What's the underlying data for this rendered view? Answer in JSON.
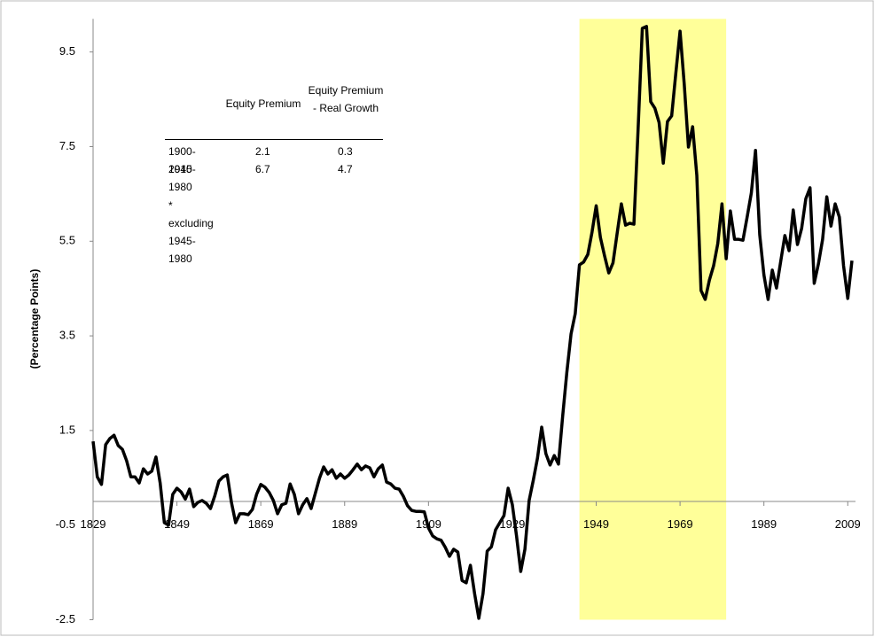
{
  "chart_data": {
    "type": "line",
    "ylabel": "(Percentage Points)",
    "x": [
      1829,
      1830,
      1831,
      1832,
      1833,
      1834,
      1835,
      1836,
      1837,
      1838,
      1839,
      1840,
      1841,
      1842,
      1843,
      1844,
      1845,
      1846,
      1847,
      1848,
      1849,
      1850,
      1851,
      1852,
      1853,
      1854,
      1855,
      1856,
      1857,
      1858,
      1859,
      1860,
      1861,
      1862,
      1863,
      1864,
      1865,
      1866,
      1867,
      1868,
      1869,
      1870,
      1871,
      1872,
      1873,
      1874,
      1875,
      1876,
      1877,
      1878,
      1879,
      1880,
      1881,
      1882,
      1883,
      1884,
      1885,
      1886,
      1887,
      1888,
      1889,
      1890,
      1891,
      1892,
      1893,
      1894,
      1895,
      1896,
      1897,
      1898,
      1899,
      1900,
      1901,
      1902,
      1903,
      1904,
      1905,
      1906,
      1907,
      1908,
      1909,
      1910,
      1911,
      1912,
      1913,
      1914,
      1915,
      1916,
      1917,
      1918,
      1919,
      1920,
      1921,
      1922,
      1923,
      1924,
      1925,
      1926,
      1927,
      1928,
      1929,
      1930,
      1931,
      1932,
      1933,
      1934,
      1935,
      1936,
      1937,
      1938,
      1939,
      1940,
      1941,
      1942,
      1943,
      1944,
      1945,
      1946,
      1947,
      1948,
      1949,
      1950,
      1951,
      1952,
      1953,
      1954,
      1955,
      1956,
      1957,
      1958,
      1959,
      1960,
      1961,
      1962,
      1963,
      1964,
      1965,
      1966,
      1967,
      1968,
      1969,
      1970,
      1971,
      1972,
      1973,
      1974,
      1975,
      1976,
      1977,
      1978,
      1979,
      1980,
      1981,
      1982,
      1983,
      1984,
      1985,
      1986,
      1987,
      1988,
      1989,
      1990,
      1991,
      1992,
      1993,
      1994,
      1995,
      1996,
      1997,
      1998,
      1999,
      2000,
      2001,
      2002,
      2003,
      2004,
      2005,
      2006,
      2007,
      2008,
      2009,
      2010
    ],
    "series": [
      {
        "color": "#000000",
        "values": [
          1.27,
          0.52,
          0.36,
          1.2,
          1.33,
          1.4,
          1.18,
          1.1,
          0.86,
          0.52,
          0.52,
          0.39,
          0.69,
          0.58,
          0.64,
          0.94,
          0.39,
          -0.45,
          -0.5,
          0.15,
          0.28,
          0.2,
          0.05,
          0.26,
          -0.11,
          -0.02,
          0.02,
          -0.04,
          -0.15,
          0.11,
          0.43,
          0.52,
          0.56,
          -0.02,
          -0.45,
          -0.26,
          -0.26,
          -0.28,
          -0.17,
          0.15,
          0.36,
          0.3,
          0.19,
          0.02,
          -0.26,
          -0.07,
          -0.04,
          0.37,
          0.15,
          -0.26,
          -0.07,
          0.06,
          -0.15,
          0.17,
          0.49,
          0.73,
          0.58,
          0.67,
          0.49,
          0.58,
          0.49,
          0.56,
          0.67,
          0.79,
          0.67,
          0.75,
          0.71,
          0.52,
          0.69,
          0.77,
          0.41,
          0.37,
          0.28,
          0.26,
          0.11,
          -0.09,
          -0.19,
          -0.21,
          -0.21,
          -0.22,
          -0.56,
          -0.73,
          -0.79,
          -0.82,
          -0.97,
          -1.16,
          -1.01,
          -1.07,
          -1.67,
          -1.72,
          -1.35,
          -1.95,
          -2.47,
          -1.95,
          -1.05,
          -0.96,
          -0.6,
          -0.45,
          -0.3,
          0.28,
          -0.07,
          -0.73,
          -1.48,
          -1.01,
          0.02,
          0.45,
          0.92,
          1.57,
          1.01,
          0.77,
          0.97,
          0.79,
          1.8,
          2.73,
          3.54,
          3.97,
          5.0,
          5.06,
          5.22,
          5.69,
          6.25,
          5.58,
          5.19,
          4.83,
          5.04,
          5.67,
          6.29,
          5.84,
          5.88,
          5.86,
          7.88,
          10.0,
          10.04,
          8.45,
          8.31,
          8.01,
          7.15,
          8.03,
          8.15,
          9.06,
          9.94,
          8.82,
          7.49,
          7.92,
          6.89,
          4.46,
          4.27,
          4.68,
          4.98,
          5.45,
          6.29,
          5.13,
          6.14,
          5.54,
          5.54,
          5.52,
          6.01,
          6.52,
          7.42,
          5.64,
          4.79,
          4.27,
          4.89,
          4.51,
          5.07,
          5.62,
          5.3,
          6.16,
          5.43,
          5.77,
          6.4,
          6.63,
          4.61,
          5.02,
          5.54,
          6.44,
          5.82,
          6.29,
          6.01,
          4.98,
          4.29,
          5.09
        ]
      }
    ],
    "xlim": [
      1829,
      2010
    ],
    "xticks": [
      1829,
      1849,
      1869,
      1889,
      1909,
      1929,
      1949,
      1969,
      1989,
      2009
    ],
    "ylim": [
      -2.5,
      10.2
    ],
    "yticks": [
      -2.5,
      -0.5,
      1.5,
      3.5,
      5.5,
      7.5,
      9.5
    ],
    "shaded_range": [
      1945,
      1980
    ],
    "shade_color": "#ffff99",
    "table": {
      "columns": [
        "Equity Premium",
        "Equity Premium - Real Growth"
      ],
      "rows": [
        [
          "1900-2010",
          2.1,
          0.3
        ],
        [
          "1945-1980",
          6.7,
          4.7
        ]
      ],
      "note": "* excluding 1945-1980"
    }
  }
}
